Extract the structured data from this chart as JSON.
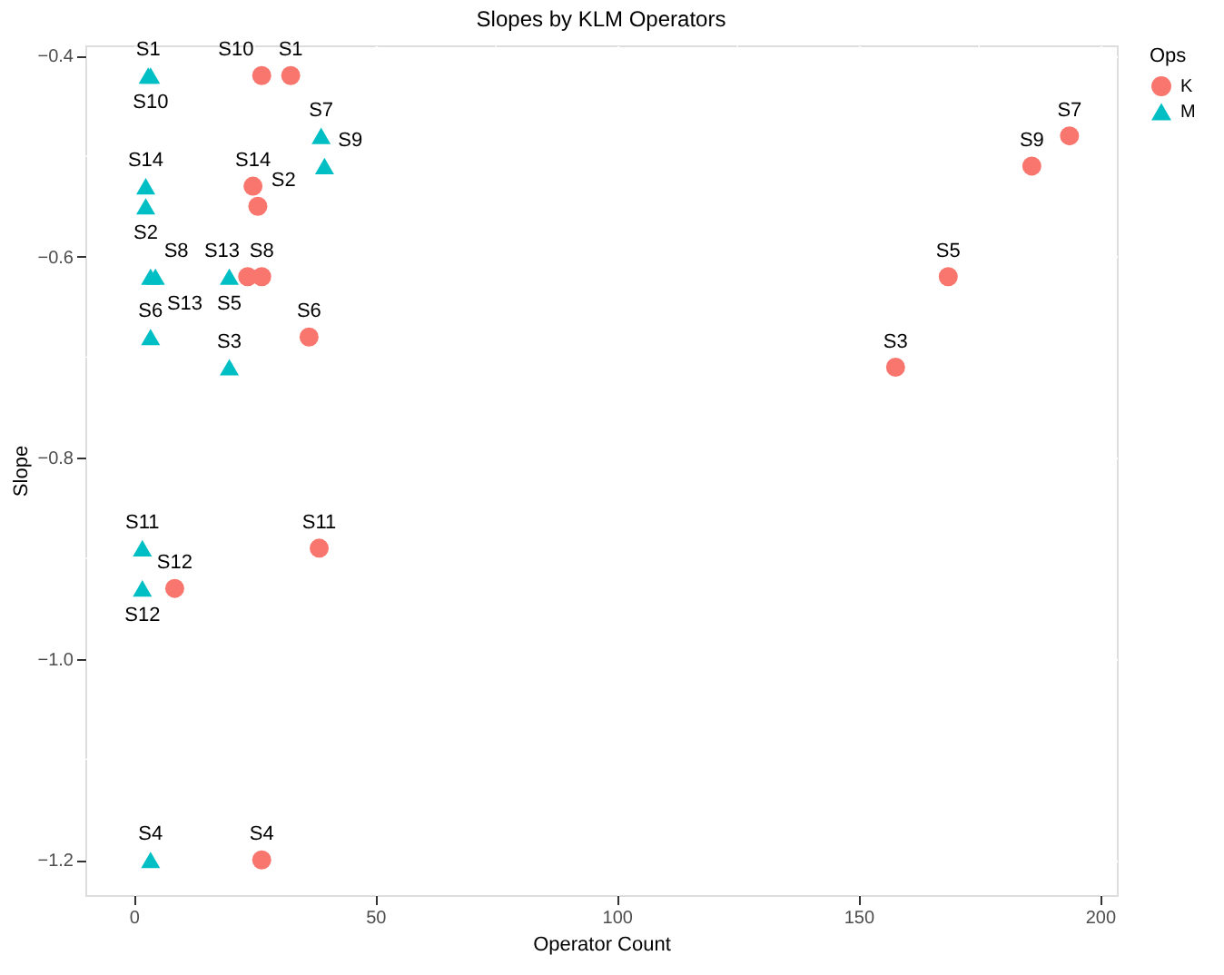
{
  "chart_data": {
    "type": "scatter",
    "title": "Slopes by KLM Operators",
    "xlabel": "Operator Count",
    "ylabel": "Slope",
    "legend_title": "Ops",
    "legend": "right",
    "grid": true,
    "xlim": [
      -10,
      203.5
    ],
    "ylim": [
      -1.235,
      -0.39
    ],
    "xticks": [
      0,
      50,
      100,
      150,
      200
    ],
    "yticks": [
      -1.2,
      {
        "value": -1.0,
        "label": "−1.0"
      },
      -0.8,
      -0.6,
      -0.4
    ],
    "series": [
      {
        "name": "K",
        "color": "#f8766d",
        "marker": "circle",
        "x": [
          32.5,
          25.7,
          157.7,
          26.5,
          168.6,
          36.3,
          193.7,
          26.5,
          185.9,
          26.5,
          38.4,
          8.5,
          23.6,
          24.7
        ],
        "values": [
          -0.42,
          -0.55,
          -0.71,
          -1.2,
          -0.62,
          -0.68,
          -0.48,
          -0.62,
          -0.51,
          -0.42,
          -0.89,
          -0.93,
          -0.62,
          -0.53
        ],
        "value_labels": [
          "S1",
          "S2",
          "S3",
          "S4",
          "S5",
          "S6",
          "S7",
          "S8",
          "S9",
          "S10",
          "S11",
          "S12",
          "S13",
          "S14"
        ]
      },
      {
        "name": "M",
        "color": "#00bfc4",
        "marker": "triangle",
        "x": [
          3.0,
          2.5,
          19.8,
          3.5,
          19.8,
          3.5,
          38.8,
          3.5,
          39.5,
          3.5,
          1.8,
          1.8,
          4.5,
          2.5
        ],
        "values": [
          -0.42,
          -0.55,
          -0.71,
          -1.2,
          -0.62,
          -0.68,
          -0.48,
          -0.62,
          -0.51,
          -0.42,
          -0.89,
          -0.93,
          -0.62,
          -0.53
        ],
        "value_labels": [
          "S1",
          "S2",
          "S3",
          "S4",
          "S5",
          "S6",
          "S7",
          "S8",
          "S9",
          "S10",
          "S11",
          "S12",
          "S13",
          "S14"
        ]
      }
    ]
  }
}
